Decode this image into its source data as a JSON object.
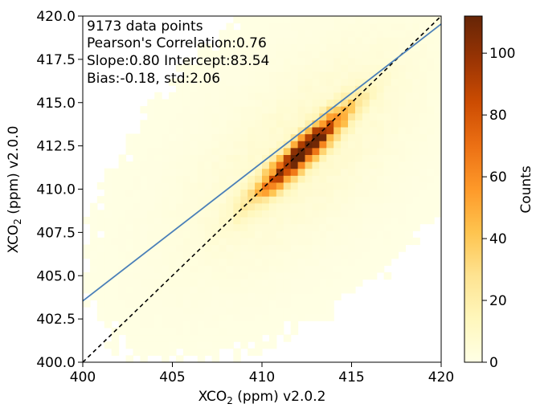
{
  "chart_data": {
    "type": "heatmap",
    "subtype": "2d-histogram-density",
    "annotation": {
      "line1": "9173 data points",
      "line2": "Pearson's Correlation:0.76",
      "line3": "Slope:0.80 Intercept:83.54",
      "line4": "Bias:-0.18, std:2.06"
    },
    "xlabel": {
      "prefix": "XCO",
      "sub": "2",
      "suffix": " (ppm) v2.0.2"
    },
    "ylabel": {
      "prefix": "XCO",
      "sub": "2",
      "suffix": " (ppm) v2.0.0"
    },
    "xlim": [
      400,
      420
    ],
    "ylim": [
      400,
      420
    ],
    "xticks": [
      400,
      405,
      410,
      415,
      420
    ],
    "xtick_labels": [
      "400",
      "405",
      "410",
      "415",
      "420"
    ],
    "yticks": [
      400.0,
      402.5,
      405.0,
      407.5,
      410.0,
      412.5,
      415.0,
      417.5,
      420.0
    ],
    "ytick_labels": [
      "400.0",
      "402.5",
      "405.0",
      "407.5",
      "410.0",
      "412.5",
      "415.0",
      "417.5",
      "420.0"
    ],
    "n_points": 9173,
    "pearson_r": 0.76,
    "regression": {
      "slope": 0.8,
      "intercept": 83.54
    },
    "bias": -0.18,
    "std": 2.06,
    "one_to_one_line": true,
    "density_center": [
      412.3,
      412.2
    ],
    "density_spread_along_diagonal": 2.3,
    "density_spread_across_diagonal": 0.45,
    "max_count": 112,
    "colorbar": {
      "label": "Counts",
      "min": 0,
      "max": 112,
      "ticks": [
        0,
        20,
        40,
        60,
        80,
        100
      ],
      "tick_labels": [
        "0",
        "20",
        "40",
        "60",
        "80",
        "100"
      ],
      "colormap": "YlOrBr"
    },
    "colors": {
      "regression_line": "#4a7fb8",
      "one_to_one_line": "#000000"
    }
  }
}
